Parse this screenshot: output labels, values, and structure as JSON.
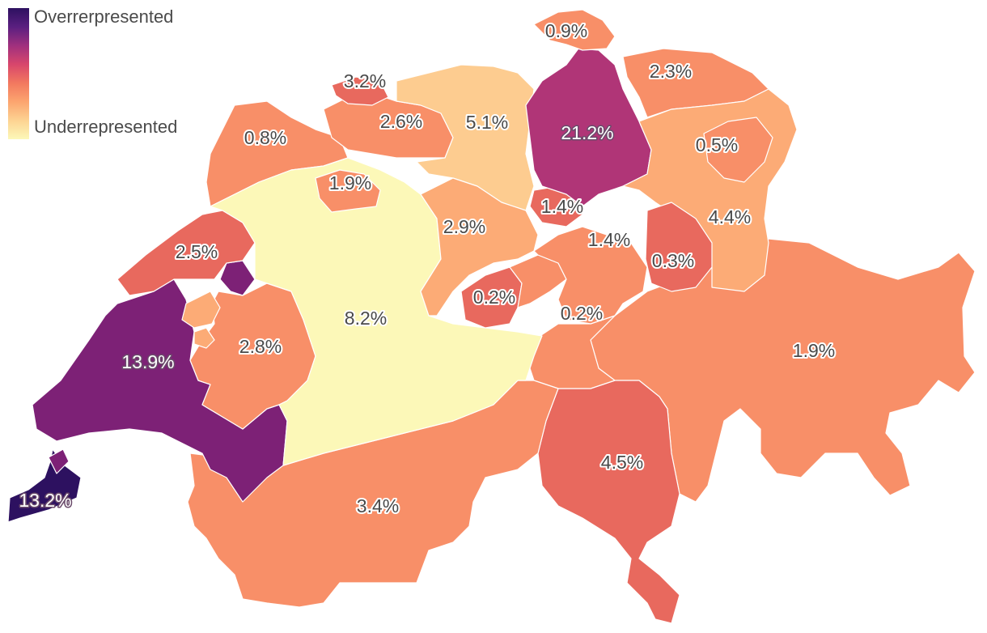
{
  "legend": {
    "top_label": "Overrerpresented",
    "bottom_label": "Underrepresented"
  },
  "colors": {
    "darkest": "#2d1160",
    "dark_purple": "#7d2176",
    "purple_magenta": "#b03577",
    "coral_red": "#e8695e",
    "orange": "#f88f68",
    "light_orange": "#fcab76",
    "pale_orange": "#fdcc90",
    "pale_yellow": "#fcf8b8"
  },
  "regions": [
    {
      "label": "21.2%"
    },
    {
      "label": "13.9%"
    },
    {
      "label": "13.2%"
    },
    {
      "label": "8.2%"
    },
    {
      "label": "5.1%"
    },
    {
      "label": "4.5%"
    },
    {
      "label": "4.4%"
    },
    {
      "label": "3.4%"
    },
    {
      "label": "3.2%"
    },
    {
      "label": "2.9%"
    },
    {
      "label": "2.8%"
    },
    {
      "label": "2.6%"
    },
    {
      "label": "2.5%"
    },
    {
      "label": "2.3%"
    },
    {
      "label": "1.9%"
    },
    {
      "label": "1.9%"
    },
    {
      "label": "1.4%"
    },
    {
      "label": "1.4%"
    },
    {
      "label": "0.9%"
    },
    {
      "label": "0.8%"
    },
    {
      "label": "0.5%"
    },
    {
      "label": "0.3%"
    },
    {
      "label": "0.2%"
    },
    {
      "label": "0.2%"
    }
  ]
}
